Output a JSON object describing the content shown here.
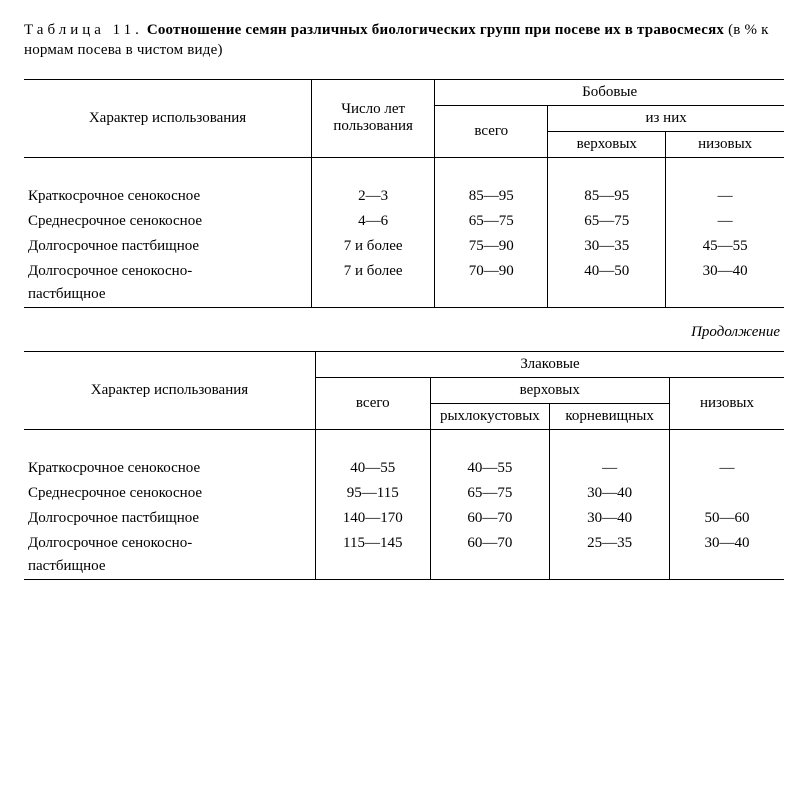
{
  "title": {
    "label": "Таблица 11.",
    "bold": "Соотношение семян различных биологических групп при посеве их в травосмесях",
    "note": "(в % к нормам посева в чистом виде)"
  },
  "continuation": "Продолжение",
  "headers1": {
    "usage": "Характер использования",
    "years": "Число лет пользования",
    "legumes": "Бобовые",
    "total": "всего",
    "of_them": "из них",
    "upper": "верховых",
    "lower": "низовых"
  },
  "headers2": {
    "usage": "Характер использования",
    "cereals": "Злаковые",
    "total": "всего",
    "upper": "верховых",
    "loose": "рыхлокустовых",
    "rhizome": "корневищных",
    "lower": "низовых"
  },
  "rows1": [
    {
      "label": "Краткосрочное сенокосное",
      "years": "2—3",
      "total": "85—95",
      "upper": "85—95",
      "lower": "—"
    },
    {
      "label": "Среднесрочное сенокосное",
      "years": "4—6",
      "total": "65—75",
      "upper": "65—75",
      "lower": "—"
    },
    {
      "label": "Долгосрочное пастбищное",
      "years": "7 и более",
      "total": "75—90",
      "upper": "30—35",
      "lower": "45—55"
    },
    {
      "label": "Долгосрочное сенокосно-",
      "years": "7 и более",
      "total": "70—90",
      "upper": "40—50",
      "lower": "30—40"
    }
  ],
  "rows1_tail": "пастбищное",
  "rows2": [
    {
      "label": "Краткосрочное сенокосное",
      "total": "40—55",
      "loose": "40—55",
      "rhizome": "—",
      "lower": "—"
    },
    {
      "label": "Среднесрочное сенокосное",
      "total": "95—115",
      "loose": "65—75",
      "rhizome": "30—40",
      "lower": ""
    },
    {
      "label": "Долгосрочное пастбищное",
      "total": "140—170",
      "loose": "60—70",
      "rhizome": "30—40",
      "lower": "50—60"
    },
    {
      "label": "Долгосрочное сенокосно-",
      "total": "115—145",
      "loose": "60—70",
      "rhizome": "25—35",
      "lower": "30—40"
    }
  ],
  "rows2_tail": "пастбищное"
}
